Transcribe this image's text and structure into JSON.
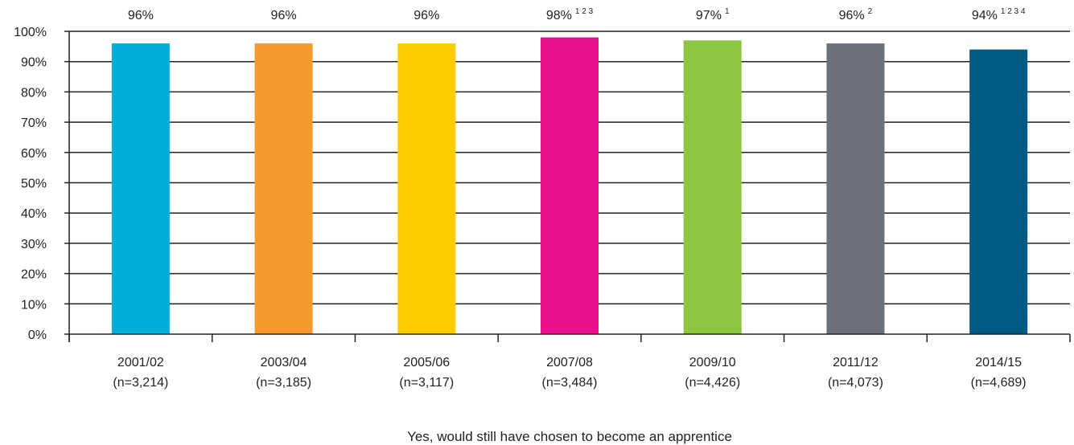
{
  "chart_data": {
    "type": "bar",
    "categories": [
      "2001/02",
      "2003/04",
      "2005/06",
      "2007/08",
      "2009/10",
      "2011/12",
      "2014/15"
    ],
    "sample_sizes": [
      "(n=3,214)",
      "(n=3,185)",
      "(n=3,117)",
      "(n=3,484)",
      "(n=4,426)",
      "(n=4,073)",
      "(n=4,689)"
    ],
    "series": [
      {
        "name": "Yes, would still have chosen to become an apprentice",
        "values": [
          96,
          96,
          96,
          98,
          97,
          96,
          94
        ],
        "labels": [
          "96%",
          "96%",
          "96%",
          "98%",
          "97%",
          "96%",
          "94%"
        ],
        "label_superscripts": [
          "",
          "",
          "",
          "1 2 3",
          "1",
          "2",
          "1 2 3 4"
        ],
        "bar_colors": [
          "#00aedb",
          "#f7982a",
          "#ffcc00",
          "#e8108c",
          "#8cc63f",
          "#6b7079",
          "#005a84"
        ]
      }
    ],
    "y_ticks": [
      "0%",
      "10%",
      "20%",
      "30%",
      "40%",
      "50%",
      "60%",
      "70%",
      "80%",
      "90%",
      "100%"
    ],
    "ylim": [
      0,
      100
    ],
    "grid": true,
    "legend_position": "bottom-center",
    "title": "",
    "xlabel": "",
    "ylabel": ""
  }
}
